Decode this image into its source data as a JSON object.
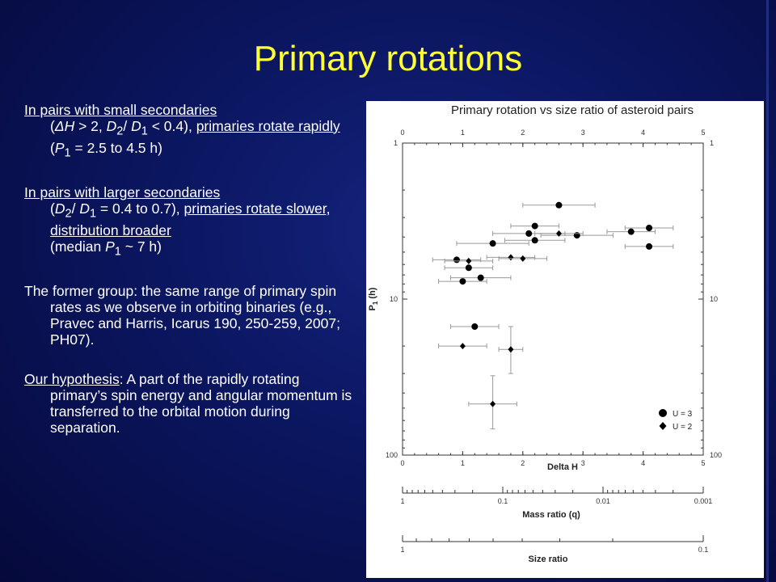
{
  "slide": {
    "title": "Primary rotations",
    "p1": {
      "a": "In pairs with small secondaries",
      "b": "(",
      "c": "ΔH",
      "d": " > 2, ",
      "e": "D",
      "f": "2",
      "g": "/ ",
      "h": "D",
      "i": "1",
      "j": " < 0.4), ",
      "k": "primaries rotate rapidly",
      "l": "(",
      "m": "P",
      "n": "1",
      "o": " = 2.5 to 4.5 h)"
    },
    "p2": {
      "a": "In pairs with larger secondaries",
      "b": "(",
      "c": "D",
      "d": "2",
      "e": "/ ",
      "f": "D",
      "g": "1",
      "h": " = 0.4 to 0.7), ",
      "i": "primaries rotate slower, distribution broader",
      "j": "(median ",
      "k": "P",
      "l": "1",
      "m": " ~ 7 h)"
    },
    "p3": "The former group: the same range of primary spin rates as we observe in orbiting binaries (e.g., Pravec and Harris, Icarus 190, 250-259, 2007; PH07).",
    "p4": {
      "a": "Our hypothesis",
      "b": ": A part of the rapidly rotating primary’s spin energy and angular momentum is transferred to the orbital motion during separation."
    }
  },
  "chart_data": {
    "type": "scatter",
    "title": "Primary rotation vs size ratio of asteroid pairs",
    "xlabel": "Delta H",
    "ylabel": "P",
    "ylabel_sub": "1",
    "ylabel_unit": " (h)",
    "xlim": [
      0,
      5
    ],
    "ylim": [
      1,
      100
    ],
    "y_scale": "log",
    "y_inverted": true,
    "x_ticks": [
      "0",
      "1",
      "2",
      "3",
      "4",
      "5"
    ],
    "y_ticks": [
      "1",
      "10",
      "100"
    ],
    "legend_position": "bottom-right",
    "series": [
      {
        "name": "U = 3",
        "marker": "circle",
        "points": [
          {
            "x": 2.6,
            "y": 2.5,
            "xerr": 0.6
          },
          {
            "x": 2.2,
            "y": 3.4,
            "xerr": 0.4
          },
          {
            "x": 2.1,
            "y": 3.8,
            "xerr": 0.6
          },
          {
            "x": 1.5,
            "y": 4.4,
            "xerr": 0.6
          },
          {
            "x": 2.2,
            "y": 4.2,
            "xerr": 0.5
          },
          {
            "x": 2.9,
            "y": 3.9,
            "xerr": 0.6
          },
          {
            "x": 3.8,
            "y": 3.7,
            "xerr": 0.4
          },
          {
            "x": 4.1,
            "y": 3.5,
            "xerr": 0.4
          },
          {
            "x": 4.1,
            "y": 4.6,
            "xerr": 0.4
          },
          {
            "x": 0.9,
            "y": 5.6,
            "xerr": 0.4
          },
          {
            "x": 1.1,
            "y": 6.3,
            "xerr": 0.4
          },
          {
            "x": 1.0,
            "y": 7.7,
            "xerr": 0.4
          },
          {
            "x": 1.3,
            "y": 7.3,
            "xerr": 0.5
          },
          {
            "x": 1.2,
            "y": 15.0,
            "xerr": 0.4
          }
        ]
      },
      {
        "name": "U = 2",
        "marker": "diamond",
        "points": [
          {
            "x": 2.6,
            "y": 3.8,
            "xerr": 0.4
          },
          {
            "x": 1.8,
            "y": 5.4,
            "xerr": 0.4
          },
          {
            "x": 2.0,
            "y": 5.5,
            "xerr": 0.4
          },
          {
            "x": 1.1,
            "y": 5.7,
            "xerr": 0.4
          },
          {
            "x": 1.0,
            "y": 20.0,
            "xerr": 0.4
          },
          {
            "x": 1.8,
            "y": 21.0,
            "xerr": 0.2,
            "yerr_low": 15.0,
            "yerr_high": 30.0
          },
          {
            "x": 1.5,
            "y": 47.0,
            "xerr": 0.4,
            "yerr_low": 31.0,
            "yerr_high": 68.0
          }
        ]
      }
    ],
    "mass_axis": {
      "label": "Mass ratio (q)",
      "ticks": [
        "1",
        "0.1",
        "0.01",
        "0.001"
      ]
    },
    "size_axis": {
      "label": "Size ratio",
      "ticks": [
        "1",
        "0.1"
      ]
    }
  }
}
